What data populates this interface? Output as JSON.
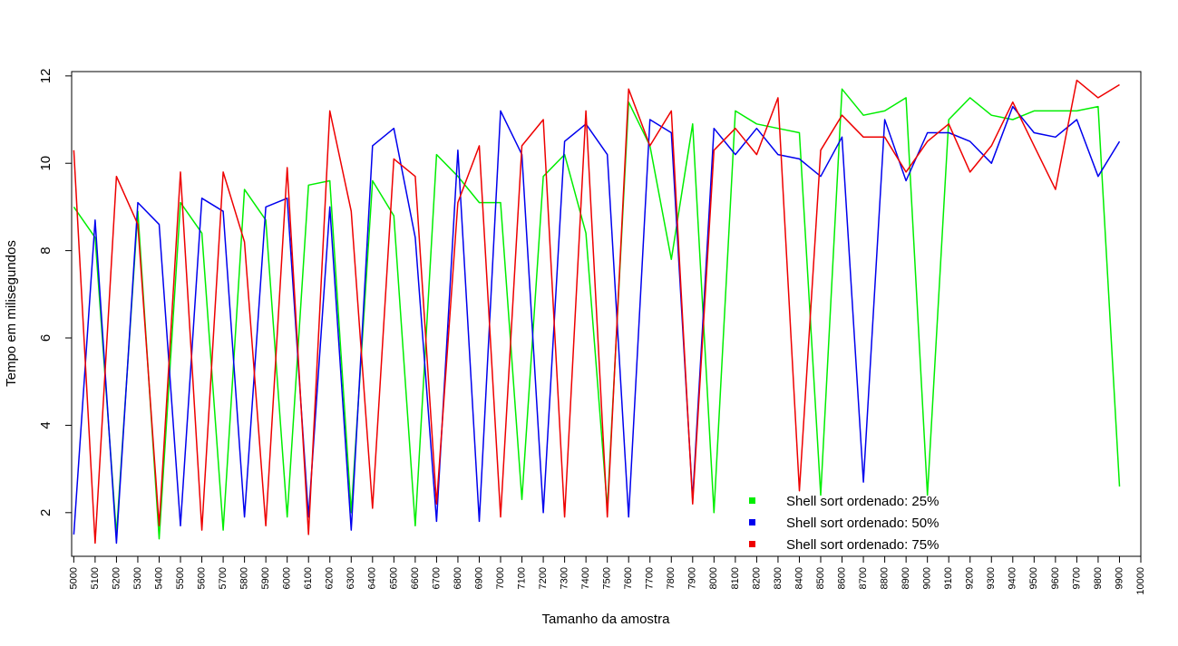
{
  "chart_data": {
    "type": "line",
    "title": "",
    "xlabel": "Tamanho da amostra",
    "ylabel": "Tempo em milisegundos",
    "x": [
      5000,
      5100,
      5200,
      5300,
      5400,
      5500,
      5600,
      5700,
      5800,
      5900,
      6000,
      6100,
      6200,
      6300,
      6400,
      6500,
      6600,
      6700,
      6800,
      6900,
      7000,
      7100,
      7200,
      7300,
      7400,
      7500,
      7600,
      7700,
      7800,
      7900,
      8000,
      8100,
      8200,
      8300,
      8400,
      8500,
      8600,
      8700,
      8800,
      8900,
      9000,
      9100,
      9200,
      9300,
      9400,
      9500,
      9600,
      9700,
      9800,
      9900
    ],
    "xticks": [
      "5000",
      "5100",
      "5200",
      "5300",
      "5400",
      "5500",
      "5600",
      "5700",
      "5800",
      "5900",
      "6000",
      "6100",
      "6200",
      "6300",
      "6400",
      "6500",
      "6600",
      "6700",
      "6800",
      "6900",
      "7000",
      "7100",
      "7200",
      "7300",
      "7400",
      "7500",
      "7600",
      "7700",
      "7800",
      "7900",
      "8000",
      "8100",
      "8200",
      "8300",
      "8400",
      "8500",
      "8600",
      "8700",
      "8800",
      "8900",
      "9000",
      "9100",
      "9200",
      "9300",
      "9400",
      "9500",
      "9600",
      "9700",
      "9800",
      "9900",
      "10000"
    ],
    "xlim": [
      4990,
      10000
    ],
    "yticks": [
      "2",
      "4",
      "6",
      "8",
      "10",
      "12"
    ],
    "ylim": [
      1.0,
      12.1
    ],
    "grid": false,
    "legend_position": "bottom-right",
    "series": [
      {
        "name": "Shell sort ordenado: 25%",
        "color": "#00ee00",
        "values": [
          9.0,
          8.3,
          1.5,
          8.9,
          1.4,
          9.1,
          8.4,
          1.6,
          9.4,
          8.7,
          1.9,
          9.5,
          9.6,
          2.0,
          9.6,
          8.8,
          1.7,
          10.2,
          9.7,
          9.1,
          9.1,
          2.3,
          9.7,
          10.2,
          8.4,
          2.1,
          11.4,
          10.4,
          7.8,
          10.9,
          2.0,
          11.2,
          10.9,
          10.8,
          10.7,
          2.4,
          11.7,
          11.1,
          11.2,
          11.5,
          2.4,
          11.0,
          11.5,
          11.1,
          11.0,
          11.2,
          11.2,
          11.2,
          11.3,
          2.6
        ]
      },
      {
        "name": "Shell sort ordenado: 50%",
        "color": "#0000ee",
        "values": [
          1.5,
          8.7,
          1.3,
          9.1,
          8.6,
          1.7,
          9.2,
          8.9,
          1.9,
          9.0,
          9.2,
          1.9,
          9.0,
          1.6,
          10.4,
          10.8,
          8.3,
          1.8,
          10.3,
          1.8,
          11.2,
          10.2,
          2.0,
          10.5,
          10.9,
          10.2,
          1.9,
          11.0,
          10.7,
          2.3,
          10.8,
          10.2,
          10.8,
          10.2,
          10.1,
          9.7,
          10.6,
          2.7,
          11.0,
          9.6,
          10.7,
          10.7,
          10.5,
          10.0,
          11.3,
          10.7,
          10.6,
          11.0,
          9.7,
          10.5
        ]
      },
      {
        "name": "Shell sort ordenado: 75%",
        "color": "#ee0000",
        "values": [
          10.3,
          1.3,
          9.7,
          8.6,
          1.7,
          9.8,
          1.6,
          9.8,
          8.2,
          1.7,
          9.9,
          1.5,
          11.2,
          8.9,
          2.1,
          10.1,
          9.7,
          2.2,
          9.1,
          10.4,
          1.9,
          10.4,
          11.0,
          1.9,
          11.2,
          1.9,
          11.7,
          10.4,
          11.2,
          2.2,
          10.3,
          10.8,
          10.2,
          11.5,
          2.5,
          10.3,
          11.1,
          10.6,
          10.6,
          9.8,
          10.5,
          10.9,
          9.8,
          10.4,
          11.4,
          10.4,
          9.4,
          11.9,
          11.5,
          11.8
        ]
      }
    ]
  }
}
